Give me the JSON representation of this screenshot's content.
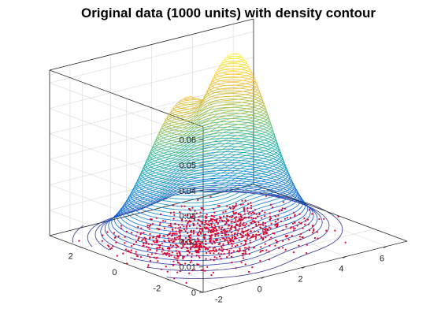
{
  "chart_data": {
    "type": "contour3d-scatter",
    "title": "Original data (1000 units) with density contour",
    "x_ticks": [
      "-2",
      "0",
      "2",
      "4",
      "6"
    ],
    "y_ticks": [
      "-2",
      "0",
      "2"
    ],
    "z_ticks": [
      "0",
      "0.01",
      "0.02",
      "0.03",
      "0.04",
      "0.05",
      "0.06"
    ],
    "xlim": [
      -3,
      7
    ],
    "ylim": [
      -3.5,
      3.5
    ],
    "zlim": [
      0,
      0.065
    ],
    "grid": true,
    "n_points": 1000,
    "contour_levels": 55,
    "colormap": "parula",
    "scatter_color": "#e0002b",
    "density_peaks": [
      {
        "x": 0.2,
        "y": 0.3,
        "height": 0.055
      },
      {
        "x": 3.3,
        "y": 0.8,
        "height": 0.064
      }
    ]
  }
}
